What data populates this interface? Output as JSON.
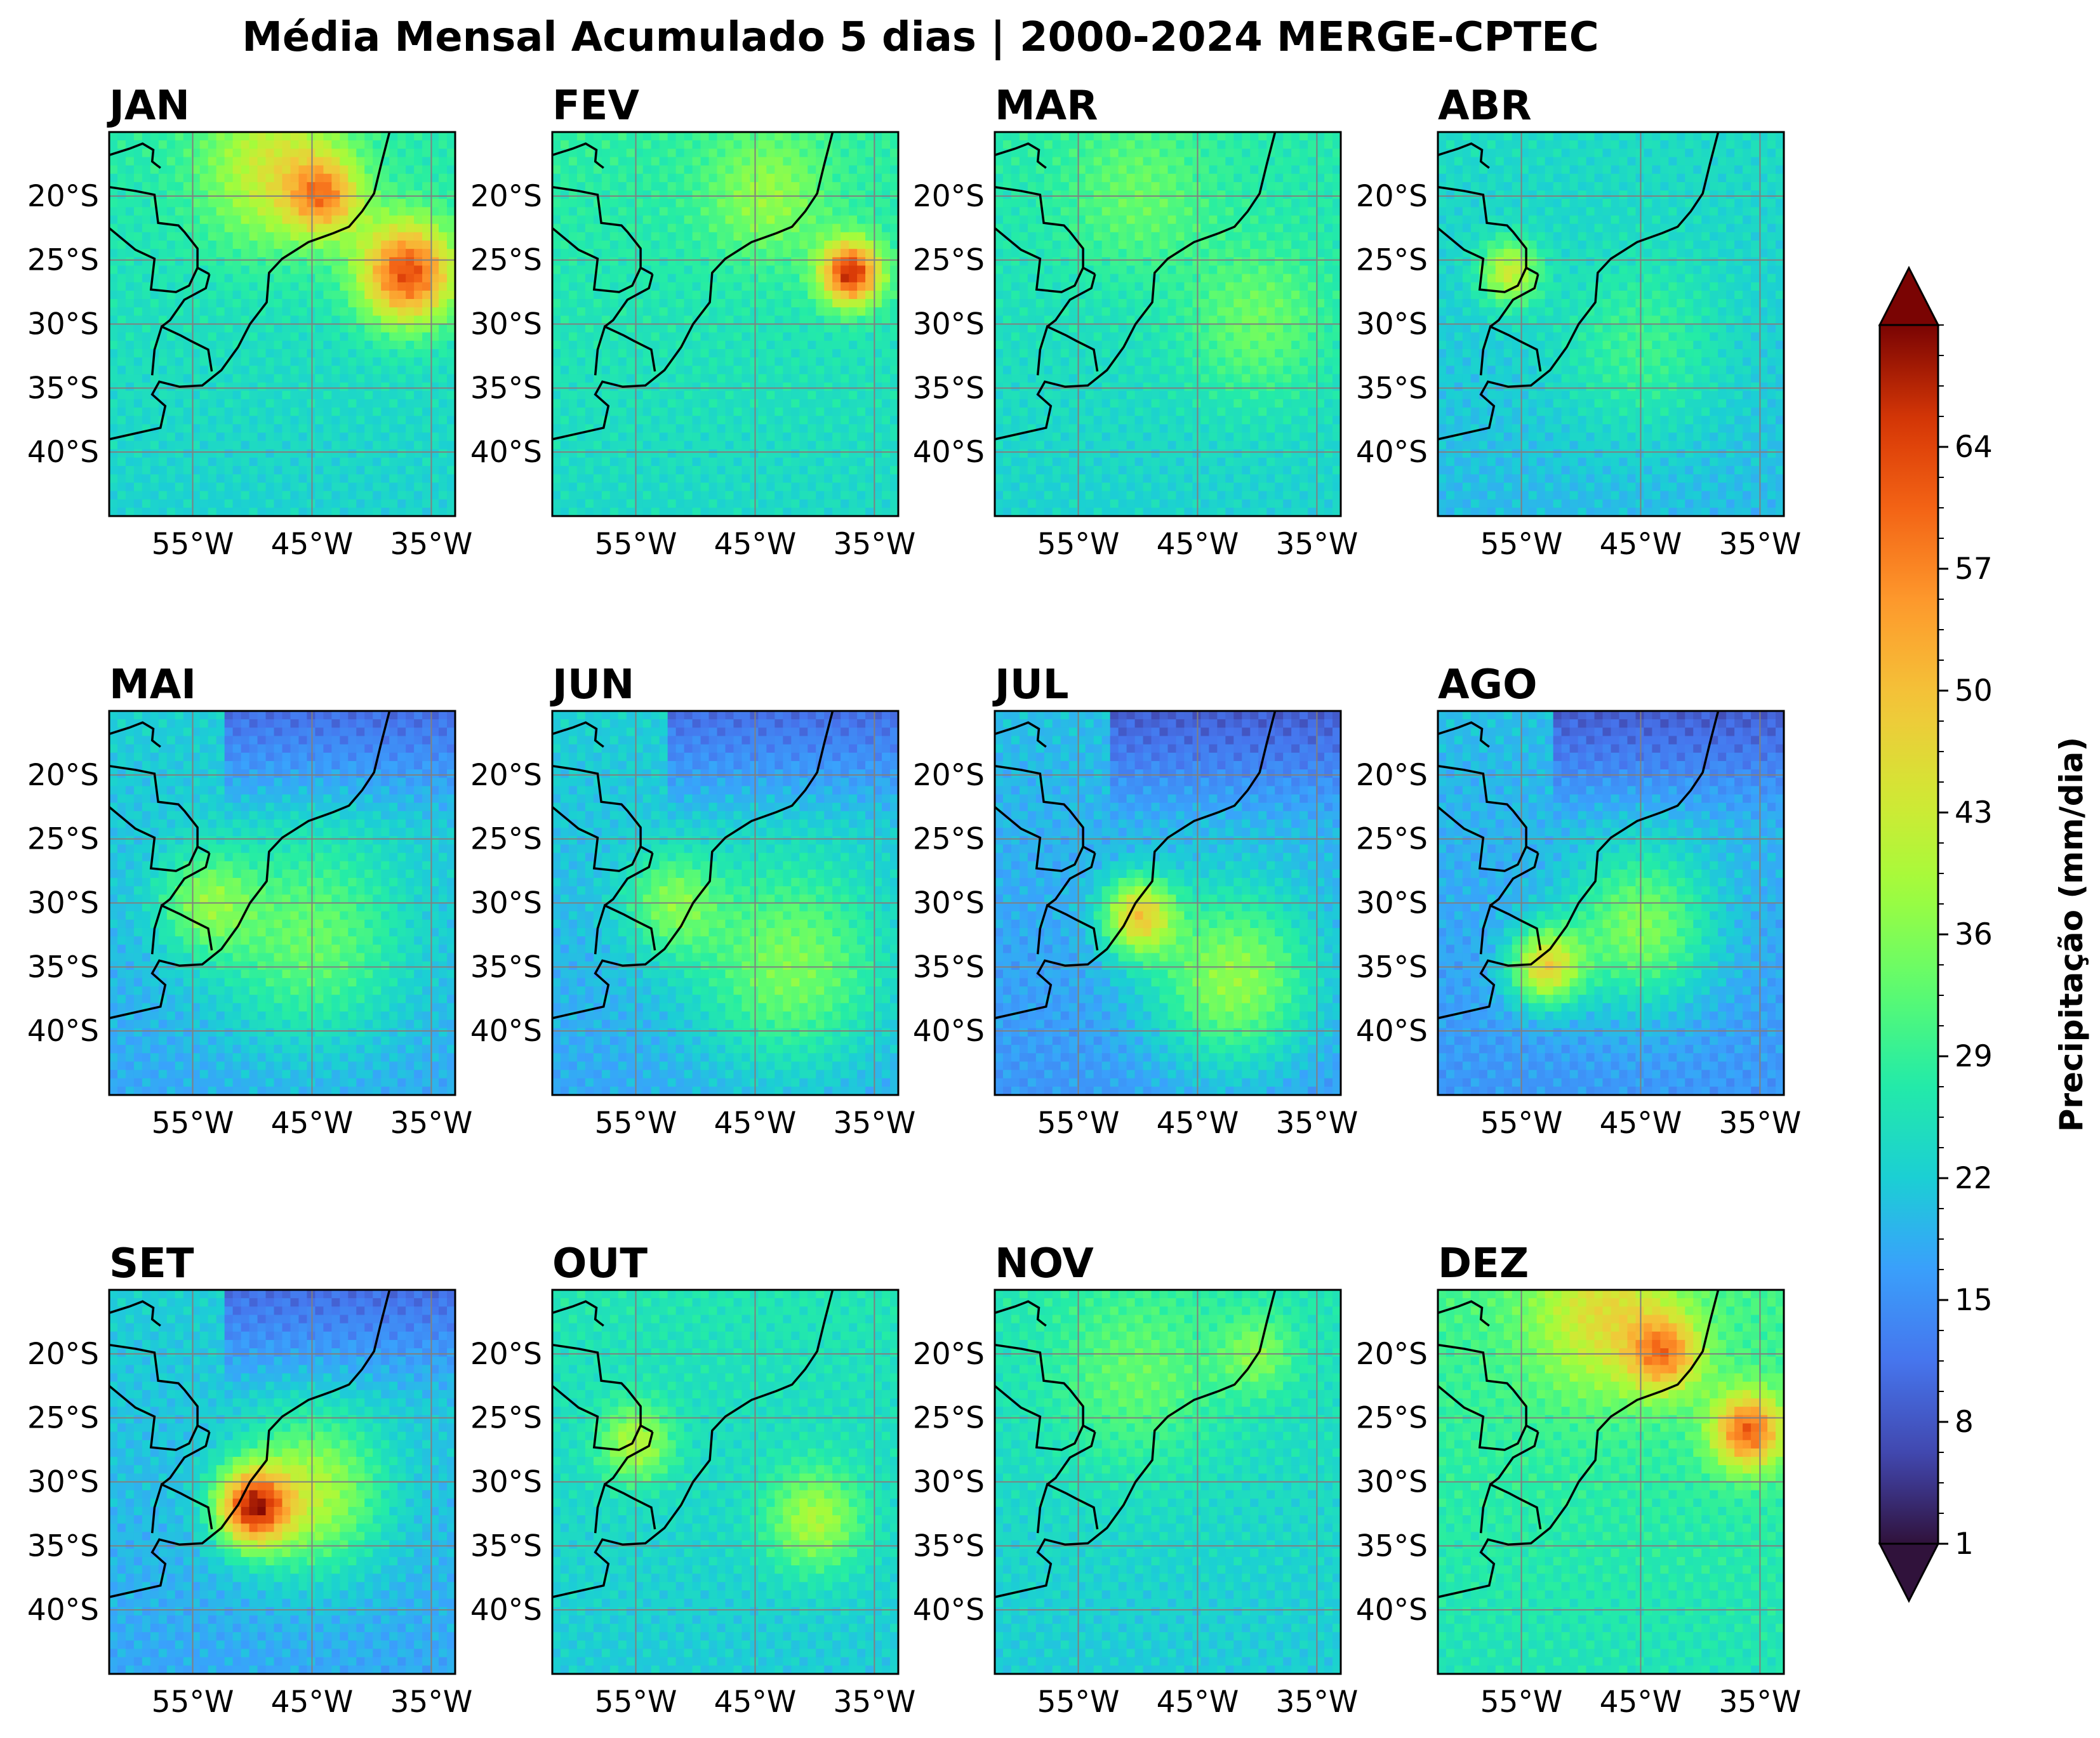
{
  "chart_data": {
    "type": "heatmap",
    "title": "Média Mensal Acumulado 5 dias | 2000-2024 MERGE-CPTEC",
    "panels": [
      {
        "label": "JAN",
        "base": 25,
        "hotspots": [
          [
            -37,
            -26,
            62,
            4
          ],
          [
            -44,
            -20,
            48,
            3
          ],
          [
            -48,
            -18,
            42,
            6
          ]
        ]
      },
      {
        "label": "FEV",
        "base": 26,
        "hotspots": [
          [
            -37,
            -26,
            66,
            2.5
          ],
          [
            -44,
            -20,
            36,
            5
          ]
        ]
      },
      {
        "label": "MAR",
        "base": 25,
        "hotspots": [
          [
            -40,
            -30,
            34,
            6
          ],
          [
            -50,
            -20,
            32,
            6
          ]
        ]
      },
      {
        "label": "ABR",
        "base": 22,
        "hotspots": [
          [
            -56,
            -26,
            42,
            2.5
          ],
          [
            -45,
            -32,
            30,
            7
          ]
        ]
      },
      {
        "label": "MAI",
        "base": 20,
        "hotspots": [
          [
            -45,
            -33,
            34,
            8
          ],
          [
            -54,
            -30,
            34,
            4
          ]
        ]
      },
      {
        "label": "JUN",
        "base": 20,
        "hotspots": [
          [
            -42,
            -35,
            36,
            8
          ],
          [
            -52,
            -30,
            34,
            4
          ]
        ]
      },
      {
        "label": "JUL",
        "base": 18,
        "hotspots": [
          [
            -50,
            -31,
            46,
            3
          ],
          [
            -42,
            -36,
            38,
            7
          ]
        ]
      },
      {
        "label": "AGO",
        "base": 18,
        "hotspots": [
          [
            -53,
            -35,
            46,
            3
          ],
          [
            -45,
            -32,
            36,
            6
          ]
        ]
      },
      {
        "label": "SET",
        "base": 20,
        "hotspots": [
          [
            -50,
            -32,
            60,
            3
          ],
          [
            -45,
            -31,
            40,
            6
          ]
        ]
      },
      {
        "label": "OUT",
        "base": 24,
        "hotspots": [
          [
            -55,
            -27,
            40,
            3
          ],
          [
            -40,
            -33,
            40,
            4
          ]
        ]
      },
      {
        "label": "NOV",
        "base": 24,
        "hotspots": [
          [
            -50,
            -22,
            32,
            7
          ],
          [
            -40,
            -20,
            34,
            3
          ]
        ]
      },
      {
        "label": "DEZ",
        "base": 28,
        "hotspots": [
          [
            -36,
            -26,
            60,
            3
          ],
          [
            -43,
            -20,
            52,
            3
          ],
          [
            -48,
            -17,
            44,
            6
          ]
        ]
      }
    ],
    "lon_range": [
      -62,
      -33
    ],
    "lat_range": [
      -45,
      -15
    ],
    "xticks": [
      -55,
      -45,
      -35
    ],
    "xtick_labels": [
      "55°W",
      "45°W",
      "35°W"
    ],
    "yticks": [
      -20,
      -25,
      -30,
      -35,
      -40
    ],
    "ytick_labels": [
      "20°S",
      "25°S",
      "30°S",
      "35°S",
      "40°S"
    ],
    "grid": true,
    "colorbar": {
      "label": "Precipitação (mm/dia)",
      "range": [
        1,
        71
      ],
      "ticks": [
        1,
        8,
        15,
        22,
        29,
        36,
        43,
        50,
        57,
        64
      ],
      "tick_labels": [
        "1",
        "8",
        "15",
        "22",
        "29",
        "36",
        "43",
        "50",
        "57",
        "64"
      ],
      "extend": "both",
      "colormap": "turbo"
    },
    "coastline": [
      [
        -38.5,
        -15
      ],
      [
        -39.2,
        -17.5
      ],
      [
        -39.8,
        -19.8
      ],
      [
        -40.8,
        -21.2
      ],
      [
        -41.9,
        -22.4
      ],
      [
        -43.2,
        -22.9
      ],
      [
        -45.3,
        -23.6
      ],
      [
        -47.5,
        -24.9
      ],
      [
        -48.6,
        -26.0
      ],
      [
        -48.8,
        -28.3
      ],
      [
        -50.2,
        -30.0
      ],
      [
        -51.2,
        -31.8
      ],
      [
        -52.6,
        -33.6
      ],
      [
        -54.2,
        -34.8
      ],
      [
        -56.1,
        -34.9
      ],
      [
        -57.8,
        -34.5
      ],
      [
        -58.4,
        -35.5
      ],
      [
        -57.3,
        -36.4
      ],
      [
        -57.7,
        -38.1
      ],
      [
        -62,
        -39.0
      ]
    ],
    "borders": [
      [
        [
          -62,
          -19.3
        ],
        [
          -59.8,
          -19.6
        ],
        [
          -58.2,
          -19.9
        ],
        [
          -57.9,
          -22.1
        ],
        [
          -56.2,
          -22.3
        ],
        [
          -55.7,
          -22.8
        ],
        [
          -54.6,
          -24.1
        ],
        [
          -54.6,
          -25.6
        ],
        [
          -55.3,
          -27.0
        ],
        [
          -56.4,
          -27.5
        ],
        [
          -58.5,
          -27.3
        ],
        [
          -58.2,
          -24.9
        ],
        [
          -59.8,
          -24.2
        ],
        [
          -62,
          -22.5
        ]
      ],
      [
        [
          -62,
          -16.8
        ],
        [
          -60.3,
          -16.3
        ],
        [
          -59.2,
          -15.9
        ],
        [
          -58.3,
          -16.4
        ],
        [
          -58.4,
          -17.3
        ],
        [
          -58.0,
          -17.6
        ],
        [
          -57.7,
          -17.8
        ]
      ],
      [
        [
          -58.4,
          -34.0
        ],
        [
          -58.2,
          -32.0
        ],
        [
          -57.6,
          -30.2
        ],
        [
          -56.0,
          -30.9
        ],
        [
          -55.2,
          -31.3
        ],
        [
          -53.7,
          -32.0
        ],
        [
          -53.4,
          -33.7
        ]
      ],
      [
        [
          -53.6,
          -26.1
        ],
        [
          -53.9,
          -27.2
        ],
        [
          -55.7,
          -28.1
        ],
        [
          -56.9,
          -29.7
        ],
        [
          -57.6,
          -30.2
        ]
      ],
      [
        [
          -54.6,
          -25.6
        ],
        [
          -53.6,
          -26.1
        ]
      ]
    ]
  }
}
